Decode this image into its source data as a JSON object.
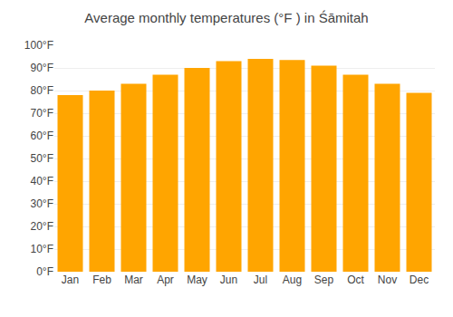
{
  "chart_data": {
    "type": "bar",
    "title": "Average monthly temperatures (°F ) in Śāmitah",
    "categories": [
      "Jan",
      "Feb",
      "Mar",
      "Apr",
      "May",
      "Jun",
      "Jul",
      "Aug",
      "Sep",
      "Oct",
      "Nov",
      "Dec"
    ],
    "values": [
      78,
      80,
      83,
      87,
      90,
      93,
      94,
      93.5,
      91,
      87,
      83,
      79
    ],
    "color": "#FFA500",
    "ylim": [
      0,
      100
    ],
    "yticks": [
      {
        "value": 0,
        "label": "0°F"
      },
      {
        "value": 10,
        "label": "10°F"
      },
      {
        "value": 20,
        "label": "20°F"
      },
      {
        "value": 30,
        "label": "30°F"
      },
      {
        "value": 40,
        "label": "40°F"
      },
      {
        "value": 50,
        "label": "50°F"
      },
      {
        "value": 60,
        "label": "60°F"
      },
      {
        "value": 70,
        "label": "70°F"
      },
      {
        "value": 80,
        "label": "80°F"
      },
      {
        "value": 90,
        "label": "90°F"
      },
      {
        "value": 100,
        "label": "100°F"
      }
    ],
    "grid": true
  }
}
